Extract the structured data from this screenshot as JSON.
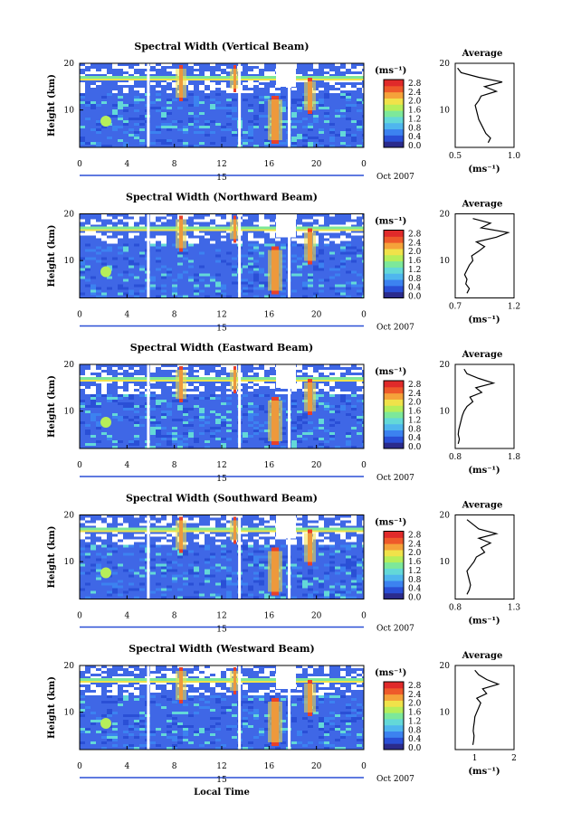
{
  "figure": {
    "date_label": "Oct 2007",
    "day_label": "15",
    "xaxis_title": "Local Time",
    "units_label": "(ms⁻¹)",
    "average_title": "Average"
  },
  "colors": {
    "colorbar": [
      "#2b2b8c",
      "#2a4fd6",
      "#3c82f0",
      "#4fb6ee",
      "#63d8d8",
      "#7de89a",
      "#b6ee5a",
      "#f0e24a",
      "#f5a23a",
      "#ee5a2a",
      "#e02a2a"
    ],
    "field_bg": "#3f67e6",
    "high": "#e8402a",
    "mid": "#6fd6c4"
  },
  "chart_data": [
    {
      "type": "heatmap",
      "title": "Spectral Width (Vertical Beam)",
      "ylabel": "Height (km)",
      "xlabel": "Local Time",
      "x_ticks": [
        "0",
        "4",
        "8",
        "12",
        "16",
        "20",
        "0"
      ],
      "y_ticks": [
        "10",
        "20"
      ],
      "xlim": [
        0,
        24
      ],
      "ylim": [
        2,
        20
      ],
      "colorbar": {
        "label": "(ms⁻¹)",
        "ticks": [
          "0.0",
          "0.4",
          "0.8",
          "1.2",
          "1.6",
          "2.0",
          "2.4",
          "2.8"
        ],
        "range": [
          0.0,
          2.8
        ]
      },
      "gaps_hours": [
        5.8,
        13.5,
        17.7
      ],
      "average_profile": {
        "title": "Average",
        "xlabel": "(ms⁻¹)",
        "x_ticks": [
          "0.5",
          "1.0"
        ],
        "xlim": [
          0.5,
          1.0
        ],
        "y_ticks": [
          "10",
          "20"
        ],
        "points": [
          [
            0.78,
            3
          ],
          [
            0.8,
            4
          ],
          [
            0.76,
            5
          ],
          [
            0.74,
            6
          ],
          [
            0.72,
            7
          ],
          [
            0.7,
            8
          ],
          [
            0.69,
            9
          ],
          [
            0.68,
            10
          ],
          [
            0.67,
            11
          ],
          [
            0.7,
            12
          ],
          [
            0.72,
            13
          ],
          [
            0.85,
            14
          ],
          [
            0.75,
            15
          ],
          [
            0.9,
            16
          ],
          [
            0.7,
            17
          ],
          [
            0.55,
            18
          ],
          [
            0.52,
            19
          ]
        ]
      }
    },
    {
      "type": "heatmap",
      "title": "Spectral Width (Northward Beam)",
      "ylabel": "Height (km)",
      "x_ticks": [
        "0",
        "4",
        "8",
        "12",
        "16",
        "20",
        "0"
      ],
      "y_ticks": [
        "10",
        "20"
      ],
      "xlim": [
        0,
        24
      ],
      "ylim": [
        2,
        20
      ],
      "colorbar": {
        "label": "(ms⁻¹)",
        "ticks": [
          "0.0",
          "0.4",
          "0.8",
          "1.2",
          "1.6",
          "2.0",
          "2.4",
          "2.8"
        ],
        "range": [
          0.0,
          2.8
        ]
      },
      "gaps_hours": [
        5.8,
        13.5,
        17.7
      ],
      "average_profile": {
        "title": "Average",
        "xlabel": "(ms⁻¹)",
        "x_ticks": [
          "0.7",
          "1.2"
        ],
        "xlim": [
          0.7,
          1.2
        ],
        "y_ticks": [
          "10",
          "20"
        ],
        "points": [
          [
            0.8,
            3
          ],
          [
            0.82,
            4
          ],
          [
            0.79,
            5
          ],
          [
            0.8,
            6
          ],
          [
            0.78,
            7
          ],
          [
            0.8,
            8
          ],
          [
            0.82,
            9
          ],
          [
            0.85,
            10
          ],
          [
            0.84,
            11
          ],
          [
            0.9,
            12
          ],
          [
            0.95,
            13
          ],
          [
            0.88,
            14
          ],
          [
            1.05,
            15
          ],
          [
            1.15,
            16
          ],
          [
            0.92,
            17
          ],
          [
            1.0,
            18
          ],
          [
            0.85,
            19
          ]
        ]
      }
    },
    {
      "type": "heatmap",
      "title": "Spectral Width (Eastward Beam)",
      "ylabel": "Height (km)",
      "x_ticks": [
        "0",
        "4",
        "8",
        "12",
        "16",
        "20",
        "0"
      ],
      "y_ticks": [
        "10",
        "20"
      ],
      "xlim": [
        0,
        24
      ],
      "ylim": [
        2,
        20
      ],
      "colorbar": {
        "label": "(ms⁻¹)",
        "ticks": [
          "0.0",
          "0.4",
          "0.8",
          "1.2",
          "1.6",
          "2.0",
          "2.4",
          "2.8"
        ],
        "range": [
          0.0,
          2.8
        ]
      },
      "gaps_hours": [
        5.8,
        13.5,
        17.7
      ],
      "average_profile": {
        "title": "Average",
        "xlabel": "(ms⁻¹)",
        "x_ticks": [
          "0.8",
          "1.8"
        ],
        "xlim": [
          0.8,
          1.8
        ],
        "y_ticks": [
          "10",
          "20"
        ],
        "points": [
          [
            0.85,
            3
          ],
          [
            0.87,
            4
          ],
          [
            0.85,
            5
          ],
          [
            0.86,
            6
          ],
          [
            0.88,
            7
          ],
          [
            0.9,
            8
          ],
          [
            0.92,
            9
          ],
          [
            0.95,
            10
          ],
          [
            1.0,
            11
          ],
          [
            1.1,
            12
          ],
          [
            1.05,
            13
          ],
          [
            1.25,
            14
          ],
          [
            1.15,
            15
          ],
          [
            1.45,
            16
          ],
          [
            1.2,
            17
          ],
          [
            1.0,
            18
          ],
          [
            0.95,
            19
          ]
        ]
      }
    },
    {
      "type": "heatmap",
      "title": "Spectral Width (Southward Beam)",
      "ylabel": "Height (km)",
      "x_ticks": [
        "0",
        "4",
        "8",
        "12",
        "16",
        "20",
        "0"
      ],
      "y_ticks": [
        "10",
        "20"
      ],
      "xlim": [
        0,
        24
      ],
      "ylim": [
        2,
        20
      ],
      "colorbar": {
        "label": "(ms⁻¹)",
        "ticks": [
          "0.0",
          "0.4",
          "0.8",
          "1.2",
          "1.6",
          "2.0",
          "2.4",
          "2.8"
        ],
        "range": [
          0.0,
          2.8
        ]
      },
      "gaps_hours": [
        5.8,
        13.5,
        17.7
      ],
      "average_profile": {
        "title": "Average",
        "xlabel": "(ms⁻¹)",
        "x_ticks": [
          "0.8",
          "1.3"
        ],
        "xlim": [
          0.8,
          1.3
        ],
        "y_ticks": [
          "10",
          "20"
        ],
        "points": [
          [
            0.9,
            3
          ],
          [
            0.92,
            4
          ],
          [
            0.93,
            5
          ],
          [
            0.92,
            6
          ],
          [
            0.91,
            7
          ],
          [
            0.9,
            8
          ],
          [
            0.93,
            9
          ],
          [
            0.96,
            10
          ],
          [
            0.98,
            11
          ],
          [
            1.05,
            12
          ],
          [
            1.02,
            13
          ],
          [
            1.1,
            14
          ],
          [
            1.0,
            15
          ],
          [
            1.15,
            16
          ],
          [
            1.0,
            17
          ],
          [
            0.95,
            18
          ],
          [
            0.9,
            19
          ]
        ]
      }
    },
    {
      "type": "heatmap",
      "title": "Spectral Width (Westward Beam)",
      "ylabel": "Height (km)",
      "xlabel": "Local Time",
      "x_ticks": [
        "0",
        "4",
        "8",
        "12",
        "16",
        "20",
        "0"
      ],
      "y_ticks": [
        "10",
        "20"
      ],
      "xlim": [
        0,
        24
      ],
      "ylim": [
        2,
        20
      ],
      "colorbar": {
        "label": "(ms⁻¹)",
        "ticks": [
          "0.0",
          "0.4",
          "0.8",
          "1.2",
          "1.6",
          "2.0",
          "2.4",
          "2.8"
        ],
        "range": [
          0.0,
          2.8
        ]
      },
      "gaps_hours": [
        5.8,
        13.5,
        17.7
      ],
      "average_profile": {
        "title": "Average",
        "xlabel": "(ms⁻¹)",
        "x_ticks": [
          "1",
          "2"
        ],
        "xlim": [
          0.5,
          2.0
        ],
        "y_ticks": [
          "10",
          "20"
        ],
        "points": [
          [
            0.95,
            3
          ],
          [
            0.97,
            4
          ],
          [
            0.98,
            5
          ],
          [
            0.96,
            6
          ],
          [
            0.97,
            7
          ],
          [
            0.99,
            8
          ],
          [
            1.0,
            9
          ],
          [
            1.05,
            10
          ],
          [
            1.1,
            11
          ],
          [
            1.15,
            12
          ],
          [
            1.05,
            13
          ],
          [
            1.3,
            14
          ],
          [
            1.2,
            15
          ],
          [
            1.6,
            16
          ],
          [
            1.3,
            17
          ],
          [
            1.1,
            18
          ],
          [
            1.0,
            19
          ]
        ]
      }
    }
  ]
}
